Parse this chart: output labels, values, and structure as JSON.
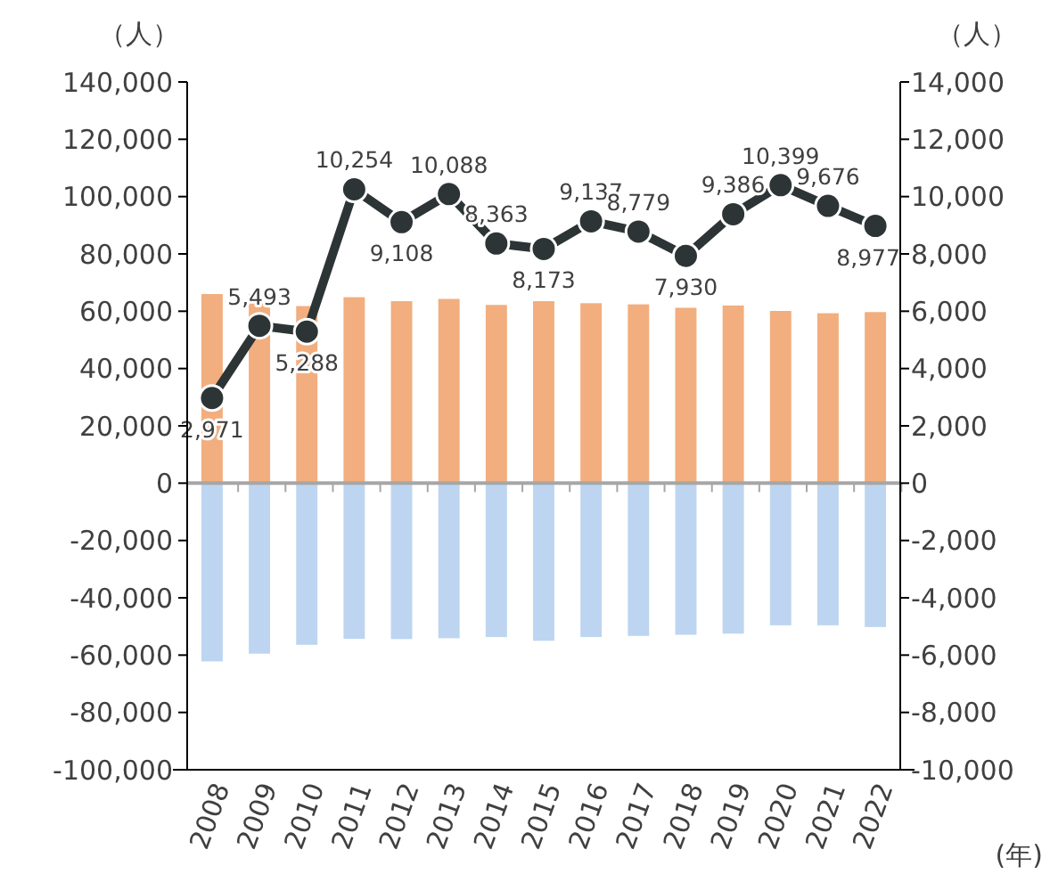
{
  "chart_data": {
    "type": "bar",
    "stacked": true,
    "xlabel": "(年)",
    "ylabel": "（人）",
    "y2label": "（人）",
    "categories": [
      "2008",
      "2009",
      "2010",
      "2011",
      "2012",
      "2013",
      "2014",
      "2015",
      "2016",
      "2017",
      "2018",
      "2019",
      "2020",
      "2021",
      "2022"
    ],
    "series": [
      {
        "color": "#f2ae7e",
        "values": [
          66000,
          66000,
          61800,
          64900,
          63500,
          64300,
          62200,
          63500,
          62800,
          62400,
          61200,
          62000,
          60100,
          59300,
          59700
        ]
      },
      {
        "color": "#bdd5f0",
        "values": [
          -62200,
          -59500,
          -56400,
          -54300,
          -54400,
          -54100,
          -53700,
          -55000,
          -53700,
          -53300,
          -52900,
          -52500,
          -49600,
          -49600,
          -50200
        ]
      },
      {
        "type": "line",
        "axis": "y2",
        "color": "#2d3436",
        "marker": "circle",
        "value_labels": [
          "2,971",
          "5,493",
          "5,288",
          "10,254",
          "9,108",
          "10,088",
          "8,363",
          "8,173",
          "9,137",
          "8,779",
          "7,930",
          "9,386",
          "10,399",
          "9,676",
          "8,977"
        ],
        "values": [
          2971,
          5493,
          5288,
          10254,
          9108,
          10088,
          8363,
          8173,
          9137,
          8779,
          7930,
          9386,
          10399,
          9676,
          8977
        ]
      }
    ],
    "ylim": [
      -100000,
      140000
    ],
    "yticks": [
      {
        "value": -100000,
        "label": "-100,000"
      },
      {
        "value": -80000,
        "label": "-80,000"
      },
      {
        "value": -60000,
        "label": "-60,000"
      },
      {
        "value": -40000,
        "label": "-40,000"
      },
      {
        "value": -20000,
        "label": "-20,000"
      },
      0,
      {
        "value": 20000,
        "label": "20,000"
      },
      {
        "value": 40000,
        "label": "40,000"
      },
      {
        "value": 60000,
        "label": "60,000"
      },
      {
        "value": 80000,
        "label": "80,000"
      },
      {
        "value": 100000,
        "label": "100,000"
      },
      {
        "value": 120000,
        "label": "120,000"
      },
      {
        "value": 140000,
        "label": "140,000"
      }
    ],
    "y2lim": [
      -10000,
      14000
    ],
    "y2ticks": [
      {
        "value": -10000,
        "label": "-10,000"
      },
      {
        "value": -8000,
        "label": "-8,000"
      },
      {
        "value": -6000,
        "label": "-6,000"
      },
      {
        "value": -4000,
        "label": "-4,000"
      },
      {
        "value": -2000,
        "label": "-2,000"
      },
      0,
      {
        "value": 2000,
        "label": "2,000"
      },
      {
        "value": 4000,
        "label": "4,000"
      },
      {
        "value": 6000,
        "label": "6,000"
      },
      {
        "value": 8000,
        "label": "8,000"
      },
      {
        "value": 10000,
        "label": "10,000"
      },
      {
        "value": 12000,
        "label": "12,000"
      },
      {
        "value": 14000,
        "label": "14,000"
      }
    ],
    "grid": false
  }
}
